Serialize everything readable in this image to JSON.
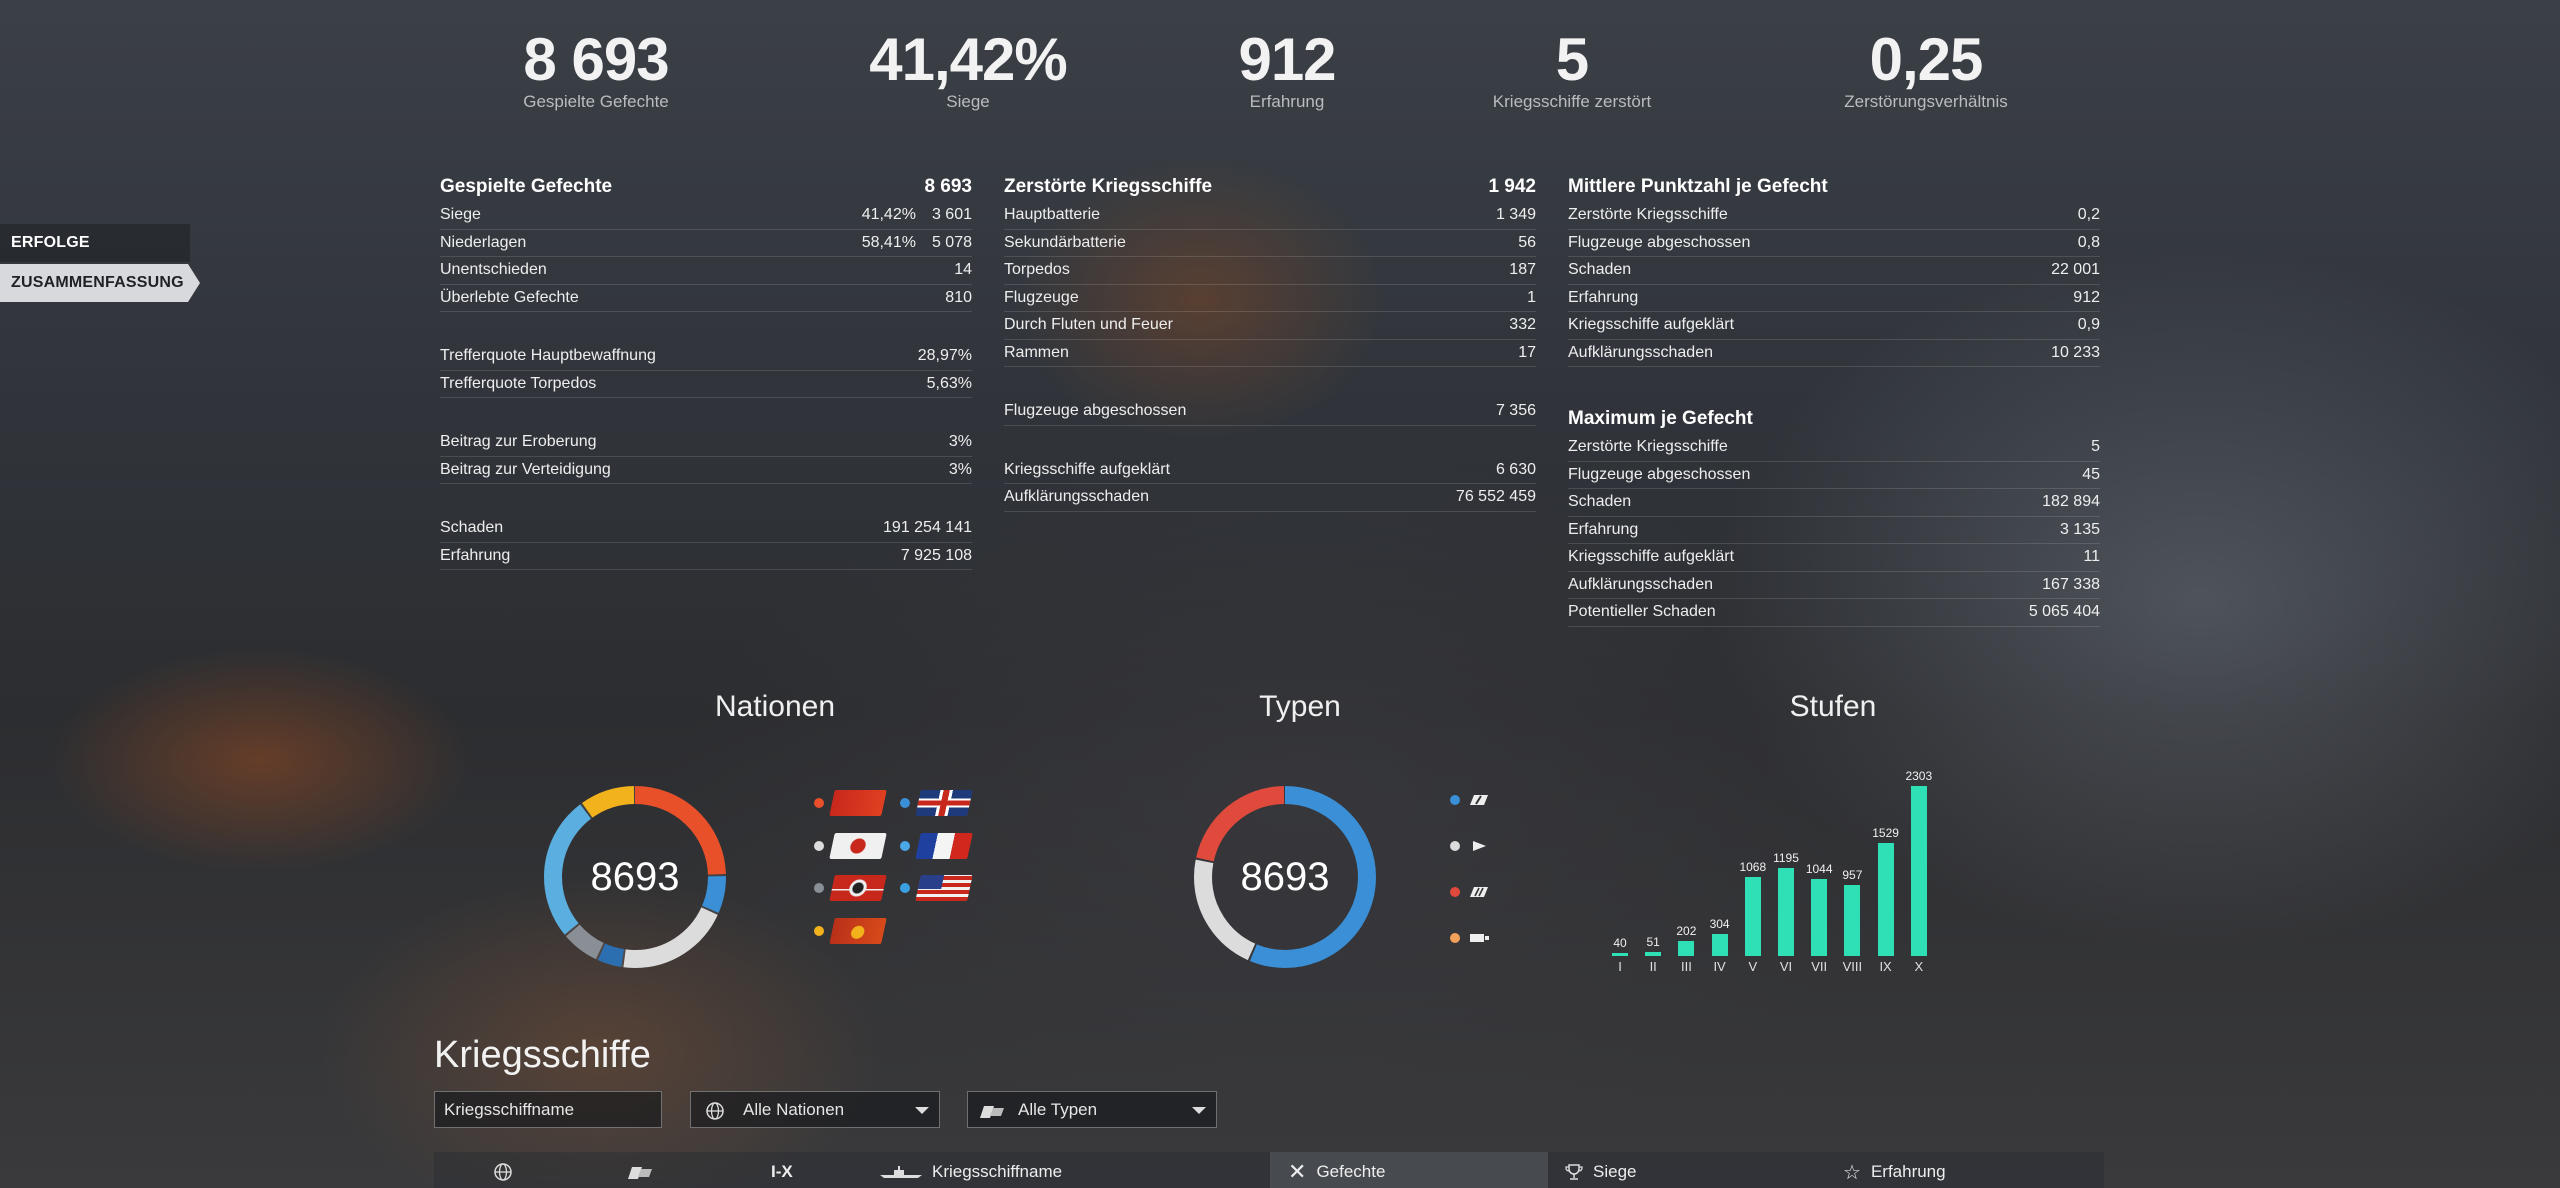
{
  "summary": [
    {
      "value": "8 693",
      "label": "Gespielte Gefechte"
    },
    {
      "value": "41,42%",
      "label": "Siege"
    },
    {
      "value": "912",
      "label": "Erfahrung"
    },
    {
      "value": "5",
      "label": "Kriegsschiffe zerstört"
    },
    {
      "value": "0,25",
      "label": "Zerstörungsverhältnis"
    }
  ],
  "nav": {
    "item1": "ERFOLGE",
    "item2": "ZUSAMMENFASSUNG"
  },
  "battles": {
    "title": "Gespielte Gefechte",
    "total": "8 693",
    "wins_label": "Siege",
    "wins_pct": "41,42%",
    "wins": "3 601",
    "losses_label": "Niederlagen",
    "losses_pct": "58,41%",
    "losses": "5 078",
    "draws_label": "Unentschieden",
    "draws": "14",
    "survived_label": "Überlebte Gefechte",
    "survived": "810",
    "hit_main_label": "Trefferquote Hauptbewaffnung",
    "hit_main": "28,97%",
    "hit_torp_label": "Trefferquote Torpedos",
    "hit_torp": "5,63%",
    "capture_label": "Beitrag zur Eroberung",
    "capture": "3%",
    "defense_label": "Beitrag zur Verteidigung",
    "defense": "3%",
    "damage_label": "Schaden",
    "damage": "191 254 141",
    "xp_label": "Erfahrung",
    "xp": "7 925 108"
  },
  "destroyed": {
    "title": "Zerstörte Kriegsschiffe",
    "total": "1 942",
    "main_label": "Hauptbatterie",
    "main": "1 349",
    "secondary_label": "Sekundärbatterie",
    "secondary": "56",
    "torpedoes_label": "Torpedos",
    "torpedoes": "187",
    "aircraft_label": "Flugzeuge",
    "aircraft": "1",
    "flood_fire_label": "Durch Fluten und Feuer",
    "flood_fire": "332",
    "ram_label": "Rammen",
    "ram": "17",
    "planes_label": "Flugzeuge abgeschossen",
    "planes": "7 356",
    "spotted_label": "Kriegsschiffe aufgeklärt",
    "spotted": "6 630",
    "spot_dmg_label": "Aufklärungsschaden",
    "spot_dmg": "76 552 459"
  },
  "average": {
    "title": "Mittlere Punktzahl je Gefecht",
    "destroyed_label": "Zerstörte Kriegsschiffe",
    "destroyed": "0,2",
    "planes_label": "Flugzeuge abgeschossen",
    "planes": "0,8",
    "damage_label": "Schaden",
    "damage": "22 001",
    "xp_label": "Erfahrung",
    "xp": "912",
    "spotted_label": "Kriegsschiffe aufgeklärt",
    "spotted": "0,9",
    "spot_dmg_label": "Aufklärungsschaden",
    "spot_dmg": "10 233"
  },
  "maximum": {
    "title": "Maximum je Gefecht",
    "destroyed_label": "Zerstörte Kriegsschiffe",
    "destroyed": "5",
    "planes_label": "Flugzeuge abgeschossen",
    "planes": "45",
    "damage_label": "Schaden",
    "damage": "182 894",
    "xp_label": "Erfahrung",
    "xp": "3 135",
    "spotted_label": "Kriegsschiffe aufgeklärt",
    "spotted": "11",
    "spot_dmg_label": "Aufklärungsschaden",
    "spot_dmg": "167 338",
    "potential_label": "Potentieller Schaden",
    "potential": "5 065 404"
  },
  "nations": {
    "title": "Nationen",
    "center": "8693",
    "colors": {
      "ussr": "#e8502a",
      "uk": "#3a8fd6",
      "japan": "#dcdcdc",
      "france": "#4aa8e8",
      "germany": "#8a8f96",
      "usa": "#3aa0e0",
      "pan_asia": "#f2b21c"
    },
    "legend": [
      {
        "flag": "ussr-flag-icon",
        "color": "#e8502a"
      },
      {
        "flag": "uk-flag-icon",
        "color": "#3a8fd6"
      },
      {
        "flag": "japan-flag-icon",
        "color": "#dcdcdc"
      },
      {
        "flag": "france-flag-icon",
        "color": "#4aa8e8"
      },
      {
        "flag": "germany-flag-icon",
        "color": "#8a8f96"
      },
      {
        "flag": "usa-flag-icon",
        "color": "#3aa0e0"
      },
      {
        "flag": "pan-asia-flag-icon",
        "color": "#f2b21c"
      }
    ]
  },
  "types": {
    "title": "Typen",
    "center": "8693",
    "legend": [
      {
        "icon": "cruiser-icon",
        "color": "#3a8fd6"
      },
      {
        "icon": "destroyer-icon",
        "color": "#dcdcdc"
      },
      {
        "icon": "battleship-icon",
        "color": "#e04a3c"
      },
      {
        "icon": "carrier-icon",
        "color": "#f2a15a"
      }
    ]
  },
  "chart_data": {
    "type": "bar",
    "title": "Stufen",
    "categories": [
      "I",
      "II",
      "III",
      "IV",
      "V",
      "VI",
      "VII",
      "VIII",
      "IX",
      "X"
    ],
    "values": [
      40,
      51,
      202,
      304,
      1068,
      1195,
      1044,
      957,
      1529,
      2303
    ],
    "color": "#2fe0b6"
  },
  "ships": {
    "title": "Kriegsschiffe",
    "search_value": "Kriegsschiffname",
    "nation_filter": "Alle Nationen",
    "type_filter": "Alle Typen",
    "columns": {
      "tier": "I-X",
      "name": "Kriegsschiffname",
      "battles": "Gefechte",
      "wins": "Siege",
      "xp": "Erfahrung"
    }
  }
}
